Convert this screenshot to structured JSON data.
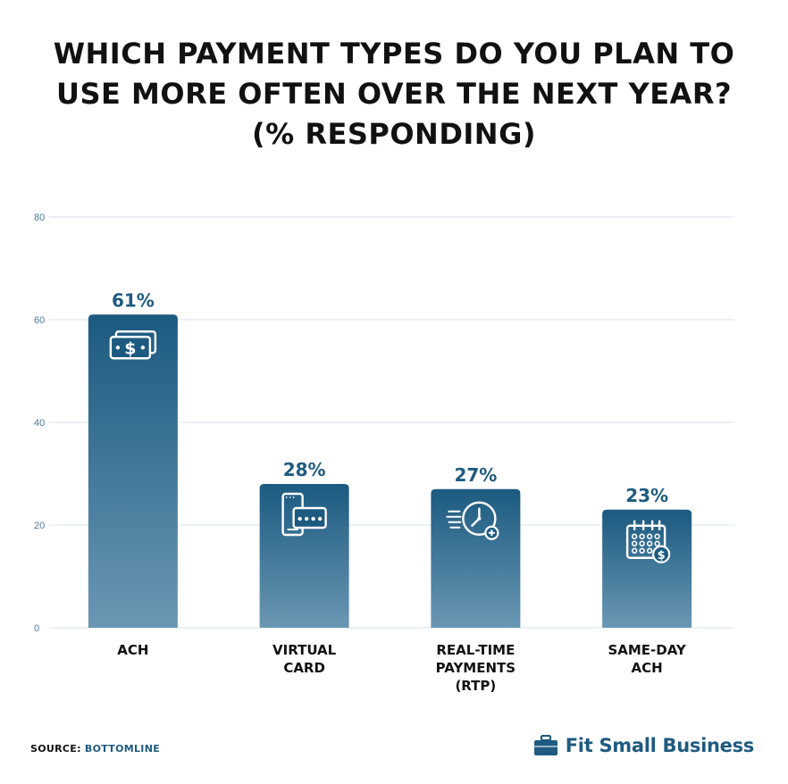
{
  "title_lines": [
    "WHICH PAYMENT TYPES DO YOU PLAN TO",
    "USE MORE OFTEN OVER THE NEXT YEAR?",
    "(% RESPONDING)"
  ],
  "chart_data": {
    "type": "bar",
    "title": "WHICH PAYMENT TYPES DO YOU PLAN TO USE MORE OFTEN OVER THE NEXT YEAR? (% RESPONDING)",
    "categories": [
      "ACH",
      "VIRTUAL CARD",
      "REAL-TIME PAYMENTS (RTP)",
      "SAME-DAY ACH"
    ],
    "category_label_lines": [
      [
        "ACH"
      ],
      [
        "VIRTUAL",
        "CARD"
      ],
      [
        "REAL-TIME",
        "PAYMENTS",
        "(RTP)"
      ],
      [
        "SAME-DAY",
        "ACH"
      ]
    ],
    "values": [
      61,
      28,
      27,
      23
    ],
    "data_labels": [
      "61%",
      "28%",
      "27%",
      "23%"
    ],
    "icons": [
      "cash-icon",
      "mobile-card-icon",
      "clock-icon",
      "calendar-dollar-icon"
    ],
    "ylim": [
      0,
      80
    ],
    "yticks": [
      0,
      20,
      40,
      60,
      80
    ],
    "grid": true,
    "colors": {
      "bar_top": "#1c5a80",
      "bar_bottom": "#6a97b3",
      "label": "#1f5b80",
      "grid": "#d5e3ec",
      "tick": "#4a7a9a"
    }
  },
  "footer": {
    "source_label": "SOURCE:",
    "source_value": "BOTTOMLINE",
    "brand": "Fit Small Business"
  }
}
